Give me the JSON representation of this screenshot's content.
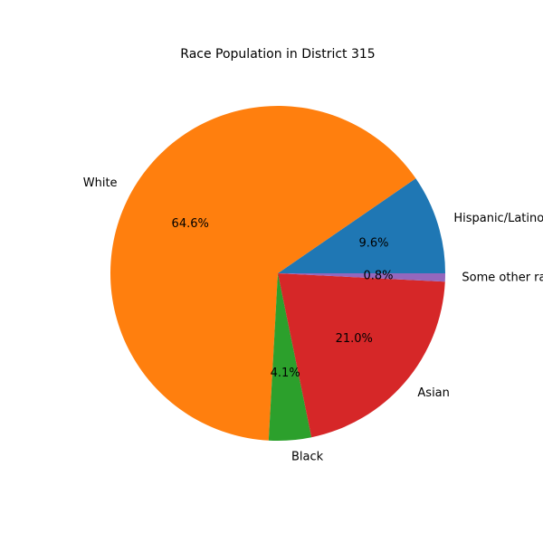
{
  "chart_data": {
    "type": "pie",
    "title": "Race Population in District 315",
    "start_angle_deg": 0,
    "direction": "counterclockwise",
    "slices": [
      {
        "label": "Hispanic/Latino",
        "value": 9.6,
        "pct_label": "9.6%",
        "color": "#1f77b4"
      },
      {
        "label": "White",
        "value": 64.6,
        "pct_label": "64.6%",
        "color": "#ff7f0e"
      },
      {
        "label": "Black",
        "value": 4.1,
        "pct_label": "4.1%",
        "color": "#2ca02c"
      },
      {
        "label": "Asian",
        "value": 21.0,
        "pct_label": "21.0%",
        "color": "#d62728"
      },
      {
        "label": "Some other race",
        "value": 0.8,
        "pct_label": "0.8%",
        "color": "#9467bd"
      }
    ]
  }
}
